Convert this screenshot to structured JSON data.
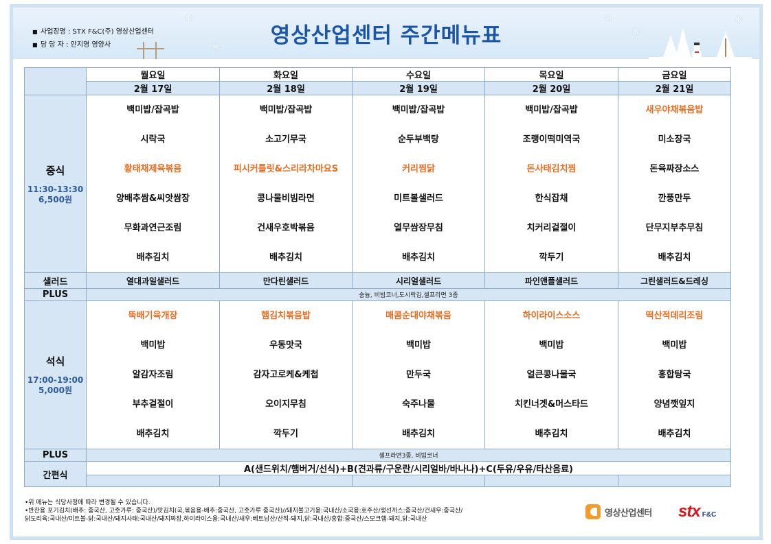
{
  "header": {
    "title": "영상산업센터 주간메뉴표",
    "info": [
      {
        "label": "사업장명 : STX F&C(주) 영상산업센터"
      },
      {
        "label": "담 당 자  : 안지영 영양사"
      }
    ]
  },
  "days": [
    {
      "day": "월요일",
      "date": "2월 17일"
    },
    {
      "day": "화요일",
      "date": "2월 18일"
    },
    {
      "day": "수요일",
      "date": "2월 19일"
    },
    {
      "day": "목요일",
      "date": "2월 20일"
    },
    {
      "day": "금요일",
      "date": "2월 21일"
    }
  ],
  "lunch": {
    "name": "중식",
    "time": "11:30-13:30",
    "price": "6,500원",
    "menus": [
      [
        "백미밥/잡곡밥",
        "시락국",
        "황태채제육볶음",
        "양배추쌈&씨앗쌈장",
        "무화과연근조림",
        "배추김치"
      ],
      [
        "백미밥/잡곡밥",
        "소고기무국",
        "피시커틀릿&스리라차마요S",
        "콩나물비빔라면",
        "건새우호박볶음",
        "배추김치"
      ],
      [
        "백미밥/잡곡밥",
        "순두부백탕",
        "커리찜닭",
        "미트볼샐러드",
        "열무쌈장무침",
        "배추김치"
      ],
      [
        "백미밥/잡곡밥",
        "조랭이떡미역국",
        "돈사태김치찜",
        "한식잡채",
        "치커리겉절이",
        "깍두기"
      ],
      [
        "새우야채볶음밥",
        "미소장국",
        "돈육짜장소스",
        "깐풍만두",
        "단무지부추무침",
        "배추김치"
      ]
    ],
    "highlight": [
      2,
      2,
      2,
      2,
      0
    ]
  },
  "salad": {
    "label": "샐러드",
    "items": [
      "열대과일샐러드",
      "만다린샐러드",
      "시리얼샐러드",
      "파인앤플샐러드",
      "그린샐러드&드레싱"
    ]
  },
  "lunch_plus": {
    "label": "PLUS",
    "text": "숭늉, 비빔코너,도시락김,셀프라면 3종"
  },
  "dinner": {
    "name": "석식",
    "time": "17:00-19:00",
    "price": "5,000원",
    "menus": [
      [
        "뚝배기육개장",
        "백미밥",
        "알감자조림",
        "부추겉절이",
        "배추김치"
      ],
      [
        "햄김치볶음밥",
        "우동맛국",
        "감자고로케&케첩",
        "오이지무침",
        "깍두기"
      ],
      [
        "매콤순대야채볶음",
        "백미밥",
        "만두국",
        "숙주나물",
        "배추김치"
      ],
      [
        "하이라이스소스",
        "백미밥",
        "얼큰콩나물국",
        "치킨너겟&머스타드",
        "배추김치"
      ],
      [
        "떡산적데리조림",
        "백미밥",
        "홍합탕국",
        "양념깻잎지",
        "배추김치"
      ]
    ]
  },
  "dinner_plus": {
    "label": "PLUS",
    "text": "셀프라면3종, 비빔코너"
  },
  "snack": {
    "label": "간편식",
    "text": "A(샌드위치/햄버거/선식)+B(견과류/구운란/시리얼바/바나나)+C(두유/우유/타산음료)"
  },
  "notes": [
    "•위 메뉴는 식당사정에 따라 변경될 수 있습니다.",
    "•반찬용 포기김치(배추: 중국산, 고춧가루: 중국산)/맛김치(국,볶음용-배추:중국산, 고춧가루 중국산)//돼지불고기용:국내산/소국용:호주산/생선까스:중국산/건새우:중국산/",
    "닭도리육:국내산/미트볼-닭:국내산/돼지사태:국내산/돼지짜장,하이라이스용:국내산/새우:베트남산/산적-돼지,닭:국내산/홍합:중국산/스모크햄-돼지,닭:국내산"
  ],
  "logos": {
    "center": "영상산업센터",
    "stx": "stx",
    "fnc": "F&C"
  },
  "colors": {
    "title": "#1b56a6",
    "highlight": "#ec6b1f",
    "cell_bg": "#d7e6f4"
  }
}
